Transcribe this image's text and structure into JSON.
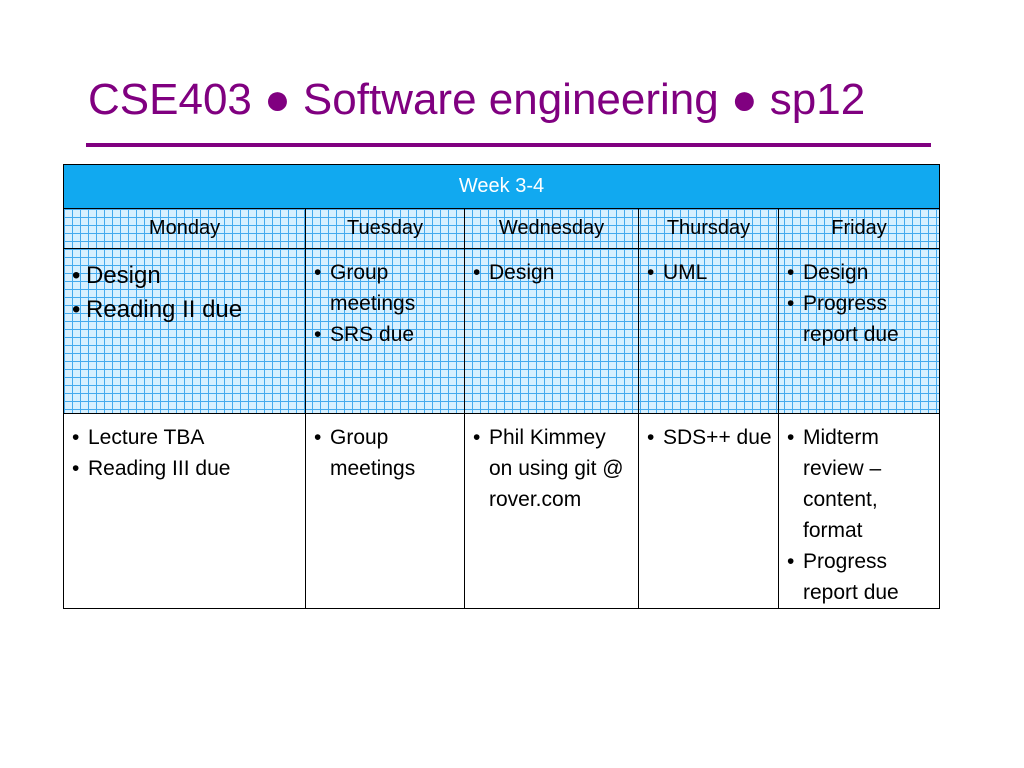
{
  "slide": {
    "title": "CSE403 ● Software engineering ● sp12"
  },
  "schedule": {
    "header": "Week 3-4",
    "days": [
      "Monday",
      "Tuesday",
      "Wednesday",
      "Thursday",
      "Friday"
    ],
    "weeks": [
      {
        "monday": [
          "Design",
          "Reading II due"
        ],
        "tuesday": [
          "Group meetings",
          "SRS due"
        ],
        "wednesday": [
          "Design"
        ],
        "thursday": [
          "UML"
        ],
        "friday": [
          "Design",
          "Progress report due"
        ]
      },
      {
        "monday": [
          "Lecture TBA",
          "Reading III due"
        ],
        "tuesday": [
          "Group meetings"
        ],
        "wednesday": [
          "Phil Kimmey on using git @ rover.com"
        ],
        "thursday": [
          "SDS++ due"
        ],
        "friday": [
          "Midterm review – content, format",
          "Progress report due"
        ]
      }
    ]
  },
  "colors": {
    "title": "#800080",
    "header_fill": "#11a9f0",
    "grid_line": "#44aaee",
    "grid_fill": "#d7f0ff"
  }
}
